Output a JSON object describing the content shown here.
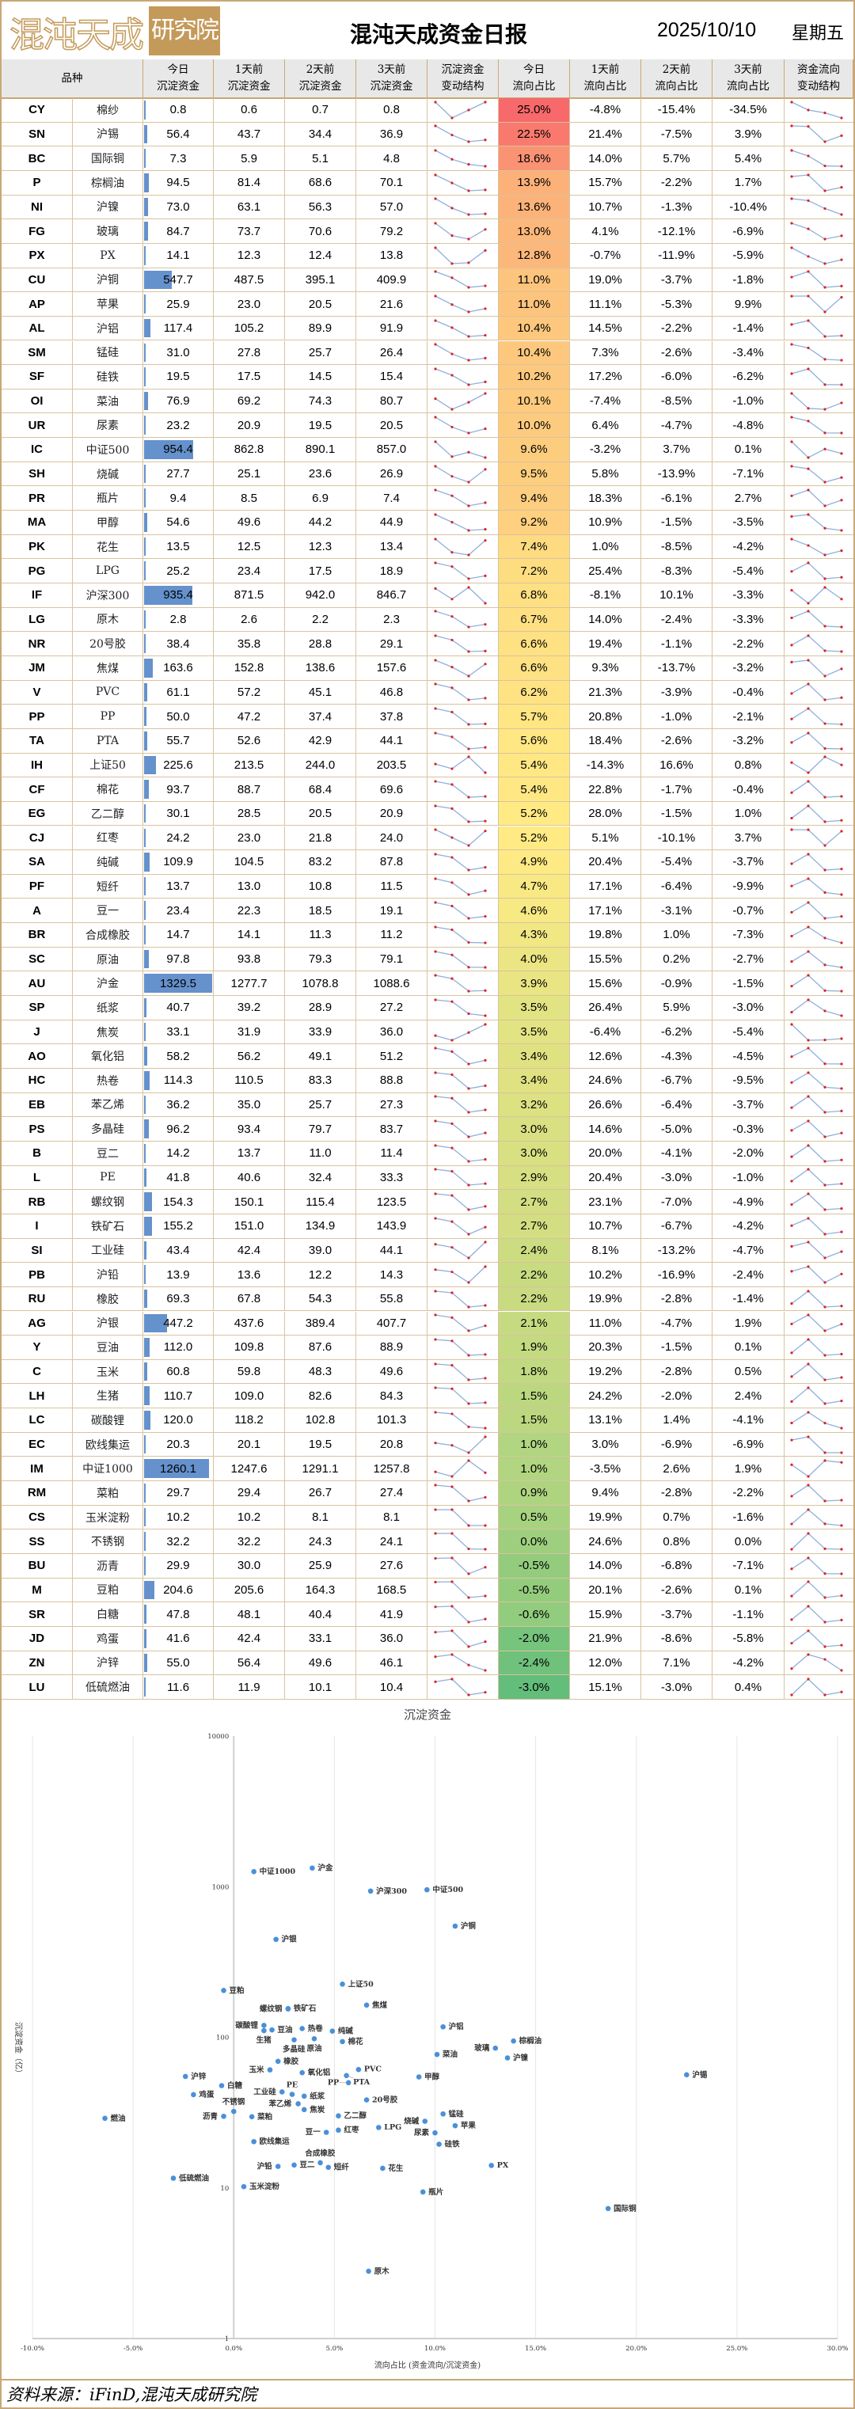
{
  "header": {
    "logo_main": "混沌天成",
    "logo_box": "研究院",
    "title": "混沌天成资金日报",
    "date": "2025/10/10",
    "weekday": "星期五"
  },
  "columns": [
    "品种",
    "今日\n沉淀资金",
    "1天前\n沉淀资金",
    "2天前\n沉淀资金",
    "3天前\n沉淀资金",
    "沉淀资金\n变动结构",
    "今日\n流向占比",
    "1天前\n流向占比",
    "2天前\n流向占比",
    "3天前\n流向占比",
    "资金流向\n变动结构"
  ],
  "colors": {
    "border": "#c9a875",
    "databar": "#6591cc",
    "heat_high": "#f8696b",
    "heat_mid": "#ffeb84",
    "heat_low": "#63be7b",
    "spark_line": "#8fb0dc",
    "spark_marker": "#e02020"
  },
  "rows": [
    {
      "code": "CY",
      "name": "棉纱",
      "cap": [
        "0.8",
        "0.6",
        "0.7",
        "0.8"
      ],
      "flow": [
        "25.0%",
        "-4.8%",
        "-15.4%",
        "-34.5%"
      ]
    },
    {
      "code": "SN",
      "name": "沪锡",
      "cap": [
        "56.4",
        "43.7",
        "34.4",
        "36.9"
      ],
      "flow": [
        "22.5%",
        "21.4%",
        "-7.5%",
        "3.9%"
      ]
    },
    {
      "code": "BC",
      "name": "国际铜",
      "cap": [
        "7.3",
        "5.9",
        "5.1",
        "4.8"
      ],
      "flow": [
        "18.6%",
        "14.0%",
        "5.7%",
        "5.4%"
      ]
    },
    {
      "code": "P",
      "name": "棕榈油",
      "cap": [
        "94.5",
        "81.4",
        "68.6",
        "70.1"
      ],
      "flow": [
        "13.9%",
        "15.7%",
        "-2.2%",
        "1.7%"
      ]
    },
    {
      "code": "NI",
      "name": "沪镍",
      "cap": [
        "73.0",
        "63.1",
        "56.3",
        "57.0"
      ],
      "flow": [
        "13.6%",
        "10.7%",
        "-1.3%",
        "-10.4%"
      ]
    },
    {
      "code": "FG",
      "name": "玻璃",
      "cap": [
        "84.7",
        "73.7",
        "70.6",
        "79.2"
      ],
      "flow": [
        "13.0%",
        "4.1%",
        "-12.1%",
        "-6.9%"
      ]
    },
    {
      "code": "PX",
      "name": "PX",
      "cap": [
        "14.1",
        "12.3",
        "12.4",
        "13.8"
      ],
      "flow": [
        "12.8%",
        "-0.7%",
        "-11.9%",
        "-5.9%"
      ]
    },
    {
      "code": "CU",
      "name": "沪铜",
      "cap": [
        "547.7",
        "487.5",
        "395.1",
        "409.9"
      ],
      "flow": [
        "11.0%",
        "19.0%",
        "-3.7%",
        "-1.8%"
      ]
    },
    {
      "code": "AP",
      "name": "苹果",
      "cap": [
        "25.9",
        "23.0",
        "20.5",
        "21.6"
      ],
      "flow": [
        "11.0%",
        "11.1%",
        "-5.3%",
        "9.9%"
      ]
    },
    {
      "code": "AL",
      "name": "沪铝",
      "cap": [
        "117.4",
        "105.2",
        "89.9",
        "91.9"
      ],
      "flow": [
        "10.4%",
        "14.5%",
        "-2.2%",
        "-1.4%"
      ]
    },
    {
      "code": "SM",
      "name": "锰硅",
      "cap": [
        "31.0",
        "27.8",
        "25.7",
        "26.4"
      ],
      "flow": [
        "10.4%",
        "7.3%",
        "-2.6%",
        "-3.4%"
      ]
    },
    {
      "code": "SF",
      "name": "硅铁",
      "cap": [
        "19.5",
        "17.5",
        "14.5",
        "15.4"
      ],
      "flow": [
        "10.2%",
        "17.2%",
        "-6.0%",
        "-6.2%"
      ]
    },
    {
      "code": "OI",
      "name": "菜油",
      "cap": [
        "76.9",
        "69.2",
        "74.3",
        "80.7"
      ],
      "flow": [
        "10.1%",
        "-7.4%",
        "-8.5%",
        "-1.0%"
      ]
    },
    {
      "code": "UR",
      "name": "尿素",
      "cap": [
        "23.2",
        "20.9",
        "19.5",
        "20.5"
      ],
      "flow": [
        "10.0%",
        "6.4%",
        "-4.7%",
        "-4.8%"
      ]
    },
    {
      "code": "IC",
      "name": "中证500",
      "cap": [
        "954.4",
        "862.8",
        "890.1",
        "857.0"
      ],
      "flow": [
        "9.6%",
        "-3.2%",
        "3.7%",
        "0.1%"
      ]
    },
    {
      "code": "SH",
      "name": "烧碱",
      "cap": [
        "27.7",
        "25.1",
        "23.6",
        "26.9"
      ],
      "flow": [
        "9.5%",
        "5.8%",
        "-13.9%",
        "-7.1%"
      ]
    },
    {
      "code": "PR",
      "name": "瓶片",
      "cap": [
        "9.4",
        "8.5",
        "6.9",
        "7.4"
      ],
      "flow": [
        "9.4%",
        "18.3%",
        "-6.1%",
        "2.7%"
      ]
    },
    {
      "code": "MA",
      "name": "甲醇",
      "cap": [
        "54.6",
        "49.6",
        "44.2",
        "44.9"
      ],
      "flow": [
        "9.2%",
        "10.9%",
        "-1.5%",
        "-3.5%"
      ]
    },
    {
      "code": "PK",
      "name": "花生",
      "cap": [
        "13.5",
        "12.5",
        "12.3",
        "13.4"
      ],
      "flow": [
        "7.4%",
        "1.0%",
        "-8.5%",
        "-4.2%"
      ]
    },
    {
      "code": "PG",
      "name": "LPG",
      "cap": [
        "25.2",
        "23.4",
        "17.5",
        "18.9"
      ],
      "flow": [
        "7.2%",
        "25.4%",
        "-8.3%",
        "-5.4%"
      ]
    },
    {
      "code": "IF",
      "name": "沪深300",
      "cap": [
        "935.4",
        "871.5",
        "942.0",
        "846.7"
      ],
      "flow": [
        "6.8%",
        "-8.1%",
        "10.1%",
        "-3.3%"
      ]
    },
    {
      "code": "LG",
      "name": "原木",
      "cap": [
        "2.8",
        "2.6",
        "2.2",
        "2.3"
      ],
      "flow": [
        "6.7%",
        "14.0%",
        "-2.4%",
        "-3.3%"
      ]
    },
    {
      "code": "NR",
      "name": "20号胶",
      "cap": [
        "38.4",
        "35.8",
        "28.8",
        "29.1"
      ],
      "flow": [
        "6.6%",
        "19.4%",
        "-1.1%",
        "-2.2%"
      ]
    },
    {
      "code": "JM",
      "name": "焦煤",
      "cap": [
        "163.6",
        "152.8",
        "138.6",
        "157.6"
      ],
      "flow": [
        "6.6%",
        "9.3%",
        "-13.7%",
        "-3.2%"
      ]
    },
    {
      "code": "V",
      "name": "PVC",
      "cap": [
        "61.1",
        "57.2",
        "45.1",
        "46.8"
      ],
      "flow": [
        "6.2%",
        "21.3%",
        "-3.9%",
        "-0.4%"
      ]
    },
    {
      "code": "PP",
      "name": "PP",
      "cap": [
        "50.0",
        "47.2",
        "37.4",
        "37.8"
      ],
      "flow": [
        "5.7%",
        "20.8%",
        "-1.0%",
        "-2.1%"
      ]
    },
    {
      "code": "TA",
      "name": "PTA",
      "cap": [
        "55.7",
        "52.6",
        "42.9",
        "44.1"
      ],
      "flow": [
        "5.6%",
        "18.4%",
        "-2.6%",
        "-3.2%"
      ]
    },
    {
      "code": "IH",
      "name": "上证50",
      "cap": [
        "225.6",
        "213.5",
        "244.0",
        "203.5"
      ],
      "flow": [
        "5.4%",
        "-14.3%",
        "16.6%",
        "0.8%"
      ]
    },
    {
      "code": "CF",
      "name": "棉花",
      "cap": [
        "93.7",
        "88.7",
        "68.4",
        "69.6"
      ],
      "flow": [
        "5.4%",
        "22.8%",
        "-1.7%",
        "-0.4%"
      ]
    },
    {
      "code": "EG",
      "name": "乙二醇",
      "cap": [
        "30.1",
        "28.5",
        "20.5",
        "20.9"
      ],
      "flow": [
        "5.2%",
        "28.0%",
        "-1.5%",
        "1.0%"
      ]
    },
    {
      "code": "CJ",
      "name": "红枣",
      "cap": [
        "24.2",
        "23.0",
        "21.8",
        "24.0"
      ],
      "flow": [
        "5.2%",
        "5.1%",
        "-10.1%",
        "3.7%"
      ]
    },
    {
      "code": "SA",
      "name": "纯碱",
      "cap": [
        "109.9",
        "104.5",
        "83.2",
        "87.8"
      ],
      "flow": [
        "4.9%",
        "20.4%",
        "-5.4%",
        "-3.7%"
      ]
    },
    {
      "code": "PF",
      "name": "短纤",
      "cap": [
        "13.7",
        "13.0",
        "10.8",
        "11.5"
      ],
      "flow": [
        "4.7%",
        "17.1%",
        "-6.4%",
        "-9.9%"
      ]
    },
    {
      "code": "A",
      "name": "豆一",
      "cap": [
        "23.4",
        "22.3",
        "18.5",
        "19.1"
      ],
      "flow": [
        "4.6%",
        "17.1%",
        "-3.1%",
        "-0.7%"
      ]
    },
    {
      "code": "BR",
      "name": "合成橡胶",
      "cap": [
        "14.7",
        "14.1",
        "11.3",
        "11.2"
      ],
      "flow": [
        "4.3%",
        "19.8%",
        "1.0%",
        "-7.3%"
      ]
    },
    {
      "code": "SC",
      "name": "原油",
      "cap": [
        "97.8",
        "93.8",
        "79.3",
        "79.1"
      ],
      "flow": [
        "4.0%",
        "15.5%",
        "0.2%",
        "-2.7%"
      ]
    },
    {
      "code": "AU",
      "name": "沪金",
      "cap": [
        "1329.5",
        "1277.7",
        "1078.8",
        "1088.6"
      ],
      "flow": [
        "3.9%",
        "15.6%",
        "-0.9%",
        "-1.5%"
      ]
    },
    {
      "code": "SP",
      "name": "纸浆",
      "cap": [
        "40.7",
        "39.2",
        "28.9",
        "27.2"
      ],
      "flow": [
        "3.5%",
        "26.4%",
        "5.9%",
        "-3.0%"
      ]
    },
    {
      "code": "J",
      "name": "焦炭",
      "cap": [
        "33.1",
        "31.9",
        "33.9",
        "36.0"
      ],
      "flow": [
        "3.5%",
        "-6.4%",
        "-6.2%",
        "-5.4%"
      ]
    },
    {
      "code": "AO",
      "name": "氧化铝",
      "cap": [
        "58.2",
        "56.2",
        "49.1",
        "51.2"
      ],
      "flow": [
        "3.4%",
        "12.6%",
        "-4.3%",
        "-4.5%"
      ]
    },
    {
      "code": "HC",
      "name": "热卷",
      "cap": [
        "114.3",
        "110.5",
        "83.3",
        "88.8"
      ],
      "flow": [
        "3.4%",
        "24.6%",
        "-6.7%",
        "-9.5%"
      ]
    },
    {
      "code": "EB",
      "name": "苯乙烯",
      "cap": [
        "36.2",
        "35.0",
        "25.7",
        "27.3"
      ],
      "flow": [
        "3.2%",
        "26.6%",
        "-6.4%",
        "-3.7%"
      ]
    },
    {
      "code": "PS",
      "name": "多晶硅",
      "cap": [
        "96.2",
        "93.4",
        "79.7",
        "83.7"
      ],
      "flow": [
        "3.0%",
        "14.6%",
        "-5.0%",
        "-0.3%"
      ]
    },
    {
      "code": "B",
      "name": "豆二",
      "cap": [
        "14.2",
        "13.7",
        "11.0",
        "11.4"
      ],
      "flow": [
        "3.0%",
        "20.0%",
        "-4.1%",
        "-2.0%"
      ]
    },
    {
      "code": "L",
      "name": "PE",
      "cap": [
        "41.8",
        "40.6",
        "32.4",
        "33.3"
      ],
      "flow": [
        "2.9%",
        "20.4%",
        "-3.0%",
        "-1.0%"
      ]
    },
    {
      "code": "RB",
      "name": "螺纹钢",
      "cap": [
        "154.3",
        "150.1",
        "115.4",
        "123.5"
      ],
      "flow": [
        "2.7%",
        "23.1%",
        "-7.0%",
        "-4.9%"
      ]
    },
    {
      "code": "I",
      "name": "铁矿石",
      "cap": [
        "155.2",
        "151.0",
        "134.9",
        "143.9"
      ],
      "flow": [
        "2.7%",
        "10.7%",
        "-6.7%",
        "-4.2%"
      ]
    },
    {
      "code": "SI",
      "name": "工业硅",
      "cap": [
        "43.4",
        "42.4",
        "39.0",
        "44.1"
      ],
      "flow": [
        "2.4%",
        "8.1%",
        "-13.2%",
        "-4.7%"
      ]
    },
    {
      "code": "PB",
      "name": "沪铅",
      "cap": [
        "13.9",
        "13.6",
        "12.2",
        "14.3"
      ],
      "flow": [
        "2.2%",
        "10.2%",
        "-16.9%",
        "-2.4%"
      ]
    },
    {
      "code": "RU",
      "name": "橡胶",
      "cap": [
        "69.3",
        "67.8",
        "54.3",
        "55.8"
      ],
      "flow": [
        "2.2%",
        "19.9%",
        "-2.8%",
        "-1.4%"
      ]
    },
    {
      "code": "AG",
      "name": "沪银",
      "cap": [
        "447.2",
        "437.6",
        "389.4",
        "407.7"
      ],
      "flow": [
        "2.1%",
        "11.0%",
        "-4.7%",
        "1.9%"
      ]
    },
    {
      "code": "Y",
      "name": "豆油",
      "cap": [
        "112.0",
        "109.8",
        "87.6",
        "88.9"
      ],
      "flow": [
        "1.9%",
        "20.3%",
        "-1.5%",
        "0.1%"
      ]
    },
    {
      "code": "C",
      "name": "玉米",
      "cap": [
        "60.8",
        "59.8",
        "48.3",
        "49.6"
      ],
      "flow": [
        "1.8%",
        "19.2%",
        "-2.8%",
        "0.5%"
      ]
    },
    {
      "code": "LH",
      "name": "生猪",
      "cap": [
        "110.7",
        "109.0",
        "82.6",
        "84.3"
      ],
      "flow": [
        "1.5%",
        "24.2%",
        "-2.0%",
        "2.4%"
      ]
    },
    {
      "code": "LC",
      "name": "碳酸锂",
      "cap": [
        "120.0",
        "118.2",
        "102.8",
        "101.3"
      ],
      "flow": [
        "1.5%",
        "13.1%",
        "1.4%",
        "-4.1%"
      ]
    },
    {
      "code": "EC",
      "name": "欧线集运",
      "cap": [
        "20.3",
        "20.1",
        "19.5",
        "20.8"
      ],
      "flow": [
        "1.0%",
        "3.0%",
        "-6.9%",
        "-6.9%"
      ]
    },
    {
      "code": "IM",
      "name": "中证1000",
      "cap": [
        "1260.1",
        "1247.6",
        "1291.1",
        "1257.8"
      ],
      "flow": [
        "1.0%",
        "-3.5%",
        "2.6%",
        "1.9%"
      ]
    },
    {
      "code": "RM",
      "name": "菜粕",
      "cap": [
        "29.7",
        "29.4",
        "26.7",
        "27.4"
      ],
      "flow": [
        "0.9%",
        "9.4%",
        "-2.8%",
        "-2.2%"
      ]
    },
    {
      "code": "CS",
      "name": "玉米淀粉",
      "cap": [
        "10.2",
        "10.2",
        "8.1",
        "8.1"
      ],
      "flow": [
        "0.5%",
        "19.9%",
        "0.7%",
        "-1.6%"
      ]
    },
    {
      "code": "SS",
      "name": "不锈钢",
      "cap": [
        "32.2",
        "32.2",
        "24.3",
        "24.1"
      ],
      "flow": [
        "0.0%",
        "24.6%",
        "0.8%",
        "0.0%"
      ]
    },
    {
      "code": "BU",
      "name": "沥青",
      "cap": [
        "29.9",
        "30.0",
        "25.9",
        "27.6"
      ],
      "flow": [
        "-0.5%",
        "14.0%",
        "-6.8%",
        "-7.1%"
      ]
    },
    {
      "code": "M",
      "name": "豆粕",
      "cap": [
        "204.6",
        "205.6",
        "164.3",
        "168.5"
      ],
      "flow": [
        "-0.5%",
        "20.1%",
        "-2.6%",
        "0.1%"
      ]
    },
    {
      "code": "SR",
      "name": "白糖",
      "cap": [
        "47.8",
        "48.1",
        "40.4",
        "41.9"
      ],
      "flow": [
        "-0.6%",
        "15.9%",
        "-3.7%",
        "-1.1%"
      ]
    },
    {
      "code": "JD",
      "name": "鸡蛋",
      "cap": [
        "41.6",
        "42.4",
        "33.1",
        "36.0"
      ],
      "flow": [
        "-2.0%",
        "21.9%",
        "-8.6%",
        "-5.8%"
      ]
    },
    {
      "code": "ZN",
      "name": "沪锌",
      "cap": [
        "55.0",
        "56.4",
        "49.6",
        "46.1"
      ],
      "flow": [
        "-2.4%",
        "12.0%",
        "7.1%",
        "-4.2%"
      ]
    },
    {
      "code": "LU",
      "name": "低硫燃油",
      "cap": [
        "11.6",
        "11.9",
        "10.1",
        "10.4"
      ],
      "flow": [
        "-3.0%",
        "15.1%",
        "-3.0%",
        "0.4%"
      ]
    }
  ],
  "chart_data": {
    "type": "scatter",
    "title": "沉淀资金",
    "xlabel": "流向占比 (资金流向/沉淀资金)",
    "ylabel": "沉淀资金（亿）",
    "x_source": "今日流向占比",
    "y_source": "今日沉淀资金",
    "xlim": [
      -10,
      30
    ],
    "ylim": [
      1,
      10000
    ],
    "y_scale": "log",
    "x_ticks": [
      "-10.0%",
      "-5.0%",
      "0.0%",
      "5.0%",
      "10.0%",
      "15.0%",
      "20.0%",
      "25.0%",
      "30.0%"
    ],
    "y_ticks": [
      "1",
      "10",
      "100",
      "1000",
      "10000"
    ],
    "grid": "vertical",
    "point_color": "#4a90d9",
    "extra_points": [
      {
        "label": "燃油",
        "x": -6.4,
        "y": 29
      }
    ]
  },
  "footer": {
    "source": "资料来源：iFinD,混沌天成研究院"
  }
}
